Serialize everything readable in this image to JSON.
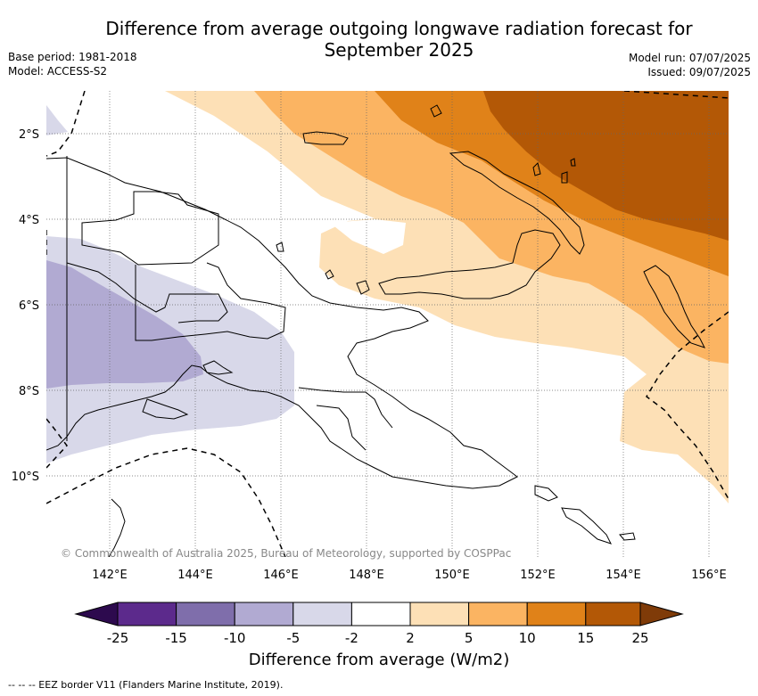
{
  "title_line1": "Difference from average outgoing longwave radiation forecast for",
  "title_line2": "September 2025",
  "base_period": "Base period: 1981-2018",
  "model": "Model: ACCESS-S2",
  "model_run": "Model run: 07/07/2025",
  "issued": "Issued: 09/07/2025",
  "copyright": "© Commonwealth of Australia 2025, Bureau of Meteorology, supported by COSPPac",
  "lat_labels": [
    "2°S",
    "4°S",
    "6°S",
    "8°S",
    "10°S"
  ],
  "lon_labels": [
    "142°E",
    "144°E",
    "146°E",
    "148°E",
    "150°E",
    "152°E",
    "154°E",
    "156°E"
  ],
  "colorbar": {
    "title": "Difference from average (W/m2)",
    "ticks": [
      "-25",
      "-15",
      "-10",
      "-5",
      "-2",
      "2",
      "5",
      "10",
      "15",
      "25"
    ],
    "colors": {
      "below_-25": "#2d0a4e",
      "-25_-15": "#5c2a8c",
      "-15_-10": "#7f6eab",
      "-10_-5": "#b1aad2",
      "-5_-2": "#d8d8e9",
      "-2_2": "#ffffff",
      "2_5": "#fde0b6",
      "5_10": "#fbb462",
      "10_15": "#e08219",
      "15_25": "#b35806",
      "above_25": "#7f3b08"
    }
  },
  "legend_footer": "-- -- -- EEZ border V11 (Flanders Marine Institute, 2019)."
}
